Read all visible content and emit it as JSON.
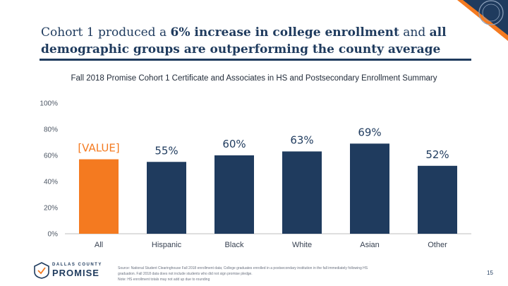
{
  "header": {
    "title_part1": "Cohort 1 produced a ",
    "title_bold1": "6% increase in college enrollment",
    "title_part2": " and ",
    "title_bold2": "all demographic groups are outperforming the county average"
  },
  "chart_data": {
    "type": "bar",
    "title": "Fall 2018 Promise Cohort 1 Certificate and Associates in HS and Postsecondary Enrollment Summary",
    "categories": [
      "All",
      "Hispanic",
      "Black",
      "White",
      "Asian",
      "Other"
    ],
    "values": [
      57,
      55,
      60,
      63,
      69,
      52
    ],
    "data_labels": [
      "[VALUE]",
      "55%",
      "60%",
      "63%",
      "69%",
      "52%"
    ],
    "bar_colors": [
      "#f47a20",
      "#1f3b5e",
      "#1f3b5e",
      "#1f3b5e",
      "#1f3b5e",
      "#1f3b5e"
    ],
    "label_colors": [
      "#f47a20",
      "#1f3b5e",
      "#1f3b5e",
      "#1f3b5e",
      "#1f3b5e",
      "#1f3b5e"
    ],
    "y_ticks": [
      "0%",
      "20%",
      "40%",
      "60%",
      "80%",
      "100%"
    ],
    "ylim": [
      0,
      100
    ],
    "xlabel": "",
    "ylabel": "",
    "grid": false
  },
  "footer": {
    "logo_county": "DALLAS COUNTY",
    "logo_promise": "PROMISE",
    "source_line1": "Source: National Student Clearinghouse Fall 2018 enrollment data; College graduates enrolled in a postsecondary institution in the fall immediately following HS",
    "source_line2": "graduation. Fall 2018 data does not include students who did not sign promise pledge.",
    "source_line3": "Note: HS enrollment totals may not add up due to rounding",
    "page_number": "15"
  },
  "colors": {
    "navy": "#1f3b5e",
    "orange": "#f47a20"
  }
}
